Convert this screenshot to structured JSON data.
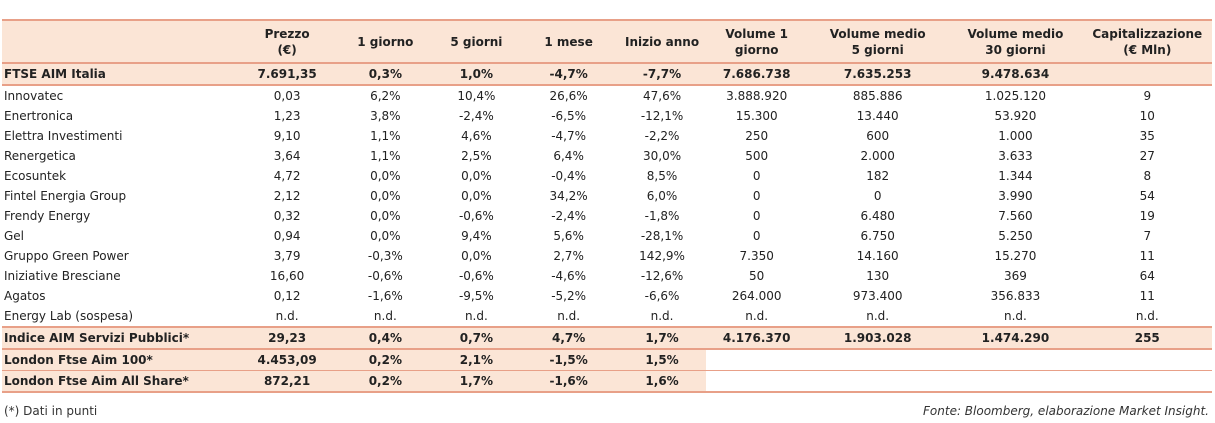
{
  "headers": [
    {
      "line1": "",
      "line2": ""
    },
    {
      "line1": "Prezzo",
      "line2": "(€)"
    },
    {
      "line1": "1 giorno",
      "line2": ""
    },
    {
      "line1": "5 giorni",
      "line2": ""
    },
    {
      "line1": "1 mese",
      "line2": ""
    },
    {
      "line1": "Inizio anno",
      "line2": ""
    },
    {
      "line1": "Volume 1",
      "line2": "giorno"
    },
    {
      "line1": "Volume medio",
      "line2": "5 giorni"
    },
    {
      "line1": "Volume medio",
      "line2": "30 giorni"
    },
    {
      "line1": "Capitalizzazione",
      "line2": "(€ Mln)"
    }
  ],
  "index_row": [
    "FTSE AIM Italia",
    "7.691,35",
    "0,3%",
    "1,0%",
    "-4,7%",
    "-7,7%",
    "7.686.738",
    "7.635.253",
    "9.478.634",
    ""
  ],
  "companies": [
    [
      "Innovatec",
      "0,03",
      "6,2%",
      "10,4%",
      "26,6%",
      "47,6%",
      "3.888.920",
      "885.886",
      "1.025.120",
      "9"
    ],
    [
      "Enertronica",
      "1,23",
      "3,8%",
      "-2,4%",
      "-6,5%",
      "-12,1%",
      "15.300",
      "13.440",
      "53.920",
      "10"
    ],
    [
      "Elettra Investimenti",
      "9,10",
      "1,1%",
      "4,6%",
      "-4,7%",
      "-2,2%",
      "250",
      "600",
      "1.000",
      "35"
    ],
    [
      "Renergetica",
      "3,64",
      "1,1%",
      "2,5%",
      "6,4%",
      "30,0%",
      "500",
      "2.000",
      "3.633",
      "27"
    ],
    [
      "Ecosuntek",
      "4,72",
      "0,0%",
      "0,0%",
      "-0,4%",
      "8,5%",
      "0",
      "182",
      "1.344",
      "8"
    ],
    [
      "Fintel Energia Group",
      "2,12",
      "0,0%",
      "0,0%",
      "34,2%",
      "6,0%",
      "0",
      "0",
      "3.990",
      "54"
    ],
    [
      "Frendy Energy",
      "0,32",
      "0,0%",
      "-0,6%",
      "-2,4%",
      "-1,8%",
      "0",
      "6.480",
      "7.560",
      "19"
    ],
    [
      "Gel",
      "0,94",
      "0,0%",
      "9,4%",
      "5,6%",
      "-28,1%",
      "0",
      "6.750",
      "5.250",
      "7"
    ],
    [
      "Gruppo Green Power",
      "3,79",
      "-0,3%",
      "0,0%",
      "2,7%",
      "142,9%",
      "7.350",
      "14.160",
      "15.270",
      "11"
    ],
    [
      "Iniziative Bresciane",
      "16,60",
      "-0,6%",
      "-0,6%",
      "-4,6%",
      "-12,6%",
      "50",
      "130",
      "369",
      "64"
    ],
    [
      "Agatos",
      "0,12",
      "-1,6%",
      "-9,5%",
      "-5,2%",
      "-6,6%",
      "264.000",
      "973.400",
      "356.833",
      "11"
    ],
    [
      "Energy Lab (sospesa)",
      "n.d.",
      "n.d.",
      "n.d.",
      "n.d.",
      "n.d.",
      "n.d.",
      "n.d.",
      "n.d.",
      "n.d."
    ]
  ],
  "servizi_row": [
    "Indice AIM Servizi Pubblici*",
    "29,23",
    "0,4%",
    "0,7%",
    "4,7%",
    "1,7%",
    "4.176.370",
    "1.903.028",
    "1.474.290",
    "255"
  ],
  "london_rows": [
    [
      "London Ftse Aim 100*",
      "4.453,09",
      "0,2%",
      "2,1%",
      "-1,5%",
      "1,5%"
    ],
    [
      "London Ftse Aim All Share*",
      "872,21",
      "0,2%",
      "1,7%",
      "-1,6%",
      "1,6%"
    ]
  ],
  "footnote": "(*) Dati in punti",
  "source": "Fonte: Bloomberg, elaborazione Market Insight."
}
